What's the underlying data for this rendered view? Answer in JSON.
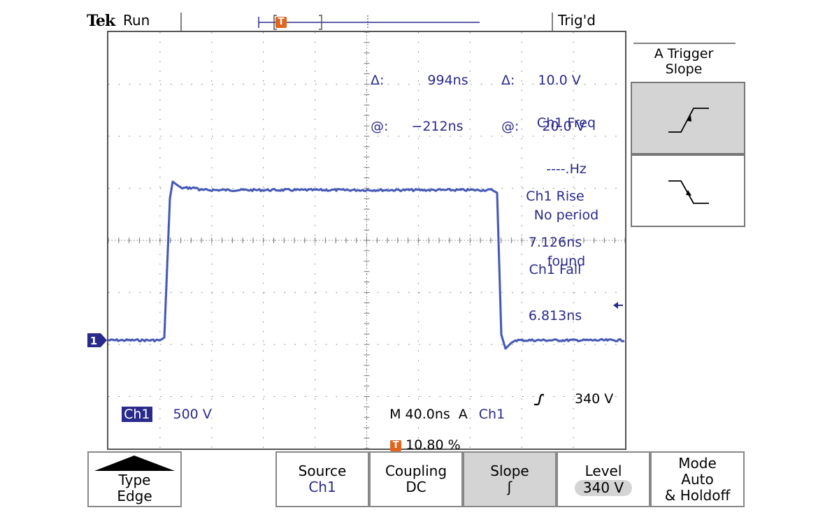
{
  "status": {
    "brand": "Tek",
    "state": "Run",
    "trigger_state": "Trig'd"
  },
  "cursor_readout": {
    "time_delta_label": "Δ:",
    "time_delta": "994ns",
    "time_at_label": "@:",
    "time_at": "−212ns",
    "volt_delta_label": "Δ:",
    "volt_delta": "10.0 V",
    "volt_at_label": "@:",
    "volt_at": "20.0 V"
  },
  "measurements": [
    {
      "label": "Ch1 Freq",
      "value": "----.Hz"
    },
    {
      "label": "No period",
      "value": "found"
    },
    {
      "label": "Ch1 Rise",
      "value": "7.126ns"
    },
    {
      "label": "Ch1 Fall",
      "value": "6.813ns"
    }
  ],
  "scale": {
    "channel": "Ch1",
    "volts_per_div": "500 V",
    "timebase": "M 40.0ns",
    "trigger_mode": "A",
    "trigger_source": "Ch1",
    "trigger_level": "340 V",
    "trigger_position": "10.80 %"
  },
  "markers": {
    "channel_marker": "1",
    "trigger_marker": "T"
  },
  "side_menu": {
    "title_line1": "A Trigger",
    "title_line2": "Slope",
    "options": [
      {
        "name": "rising-edge",
        "selected": true
      },
      {
        "name": "falling-edge",
        "selected": false
      }
    ]
  },
  "bottom_menu": [
    {
      "title": "Type",
      "value": "Edge"
    },
    {
      "title": "Source",
      "value": "Ch1"
    },
    {
      "title": "Coupling",
      "value": "DC"
    },
    {
      "title": "Slope",
      "value": "ʃ"
    },
    {
      "title": "Level",
      "value": "340 V"
    },
    {
      "title": "Mode",
      "value": "Auto",
      "value2": "& Holdoff"
    }
  ],
  "colors": {
    "trace": "#3a4fb0",
    "readout": "#2a2a8c",
    "trigger_marker": "#e0651e",
    "grid": "#777777",
    "selected_button": "#d4d4d4"
  }
}
